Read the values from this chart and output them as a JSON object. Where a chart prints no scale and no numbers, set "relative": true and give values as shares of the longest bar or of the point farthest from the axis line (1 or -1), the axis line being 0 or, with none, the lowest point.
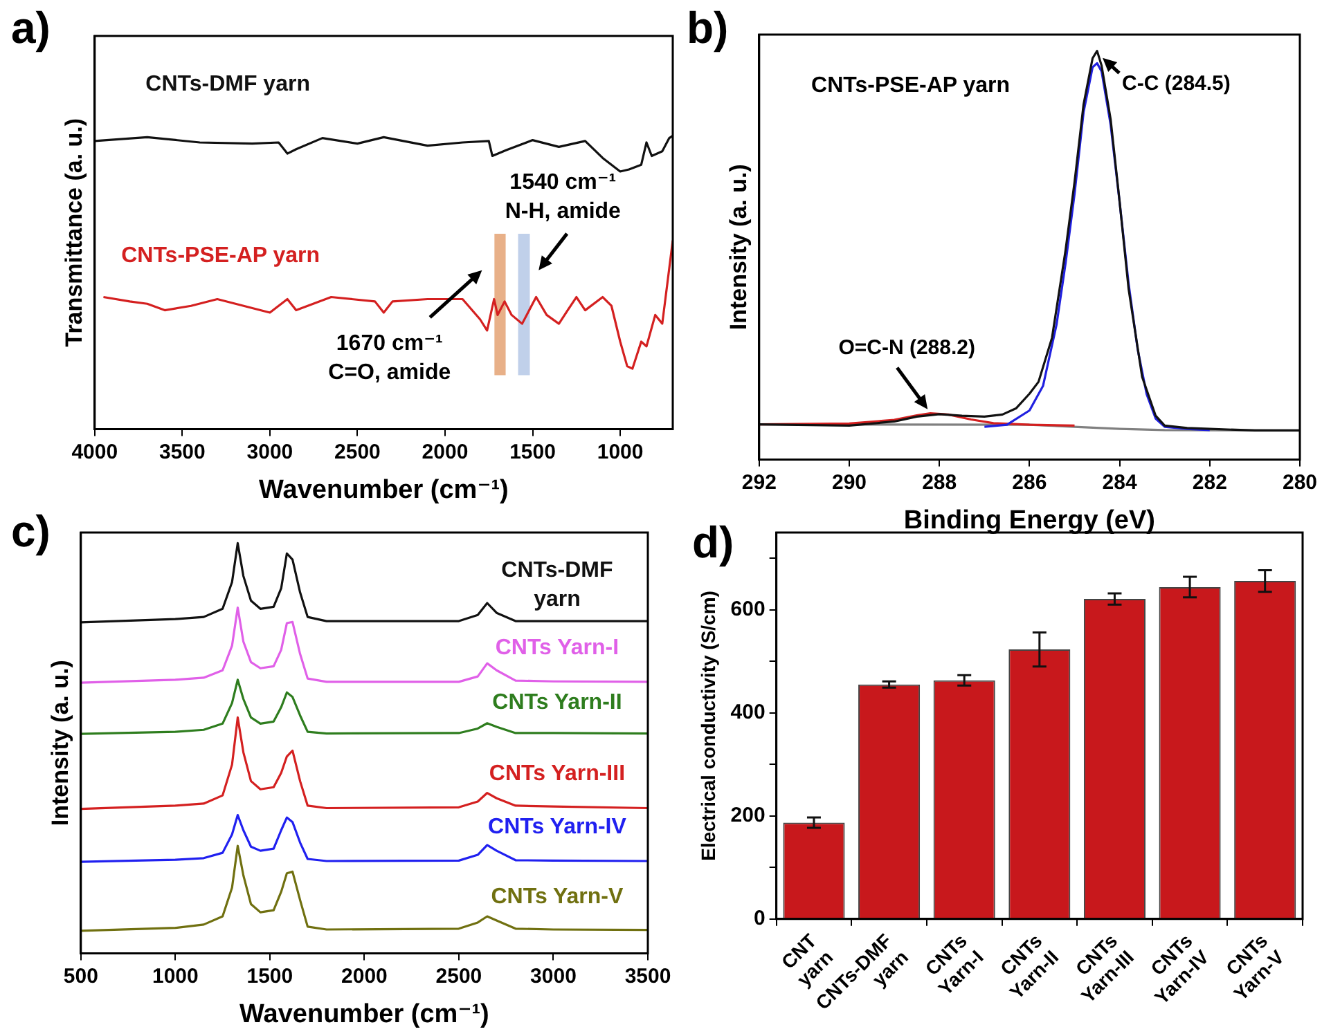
{
  "chart_data": [
    {
      "type": "line",
      "xlabel": "Wavenumber (cm⁻¹)",
      "ylabel": "Transmittance (a. u.)",
      "relative": true,
      "xlim": [
        4000,
        700
      ],
      "xticks": [
        4000,
        3500,
        3000,
        2500,
        2000,
        1500,
        1000
      ],
      "annotations": [
        "a)"
      ],
      "bands": [
        {
          "axis": "x",
          "from": 1718,
          "to": 1654,
          "label": "1670 cm⁻¹\nC=O, amide",
          "color": "#e8b088"
        },
        {
          "axis": "x",
          "from": 1583,
          "to": 1516,
          "label": "1540 cm⁻¹\nN-H, amide",
          "color": "#c0d0ea"
        }
      ],
      "series": [
        {
          "name": "CNTs-DMF yarn",
          "color": "#111111",
          "x": [
            4000,
            3700,
            3400,
            3100,
            2950,
            2900,
            2850,
            2700,
            2500,
            2350,
            2100,
            1900,
            1750,
            1730,
            1650,
            1500,
            1350,
            1200,
            1100,
            1000,
            950,
            880,
            850,
            820,
            760,
            720,
            700
          ],
          "values": [
            0.982,
            0.995,
            0.977,
            0.973,
            0.977,
            0.939,
            0.954,
            0.992,
            0.973,
            0.995,
            0.966,
            0.977,
            0.982,
            0.931,
            0.951,
            0.985,
            0.962,
            0.982,
            0.924,
            0.878,
            0.885,
            0.901,
            0.977,
            0.931,
            0.947,
            0.992,
            1.0
          ]
        },
        {
          "name": "CNTs-PSE-AP yarn",
          "color": "#d42020",
          "x": [
            3950,
            3800,
            3700,
            3600,
            3450,
            3300,
            3000,
            2900,
            2850,
            2650,
            2400,
            2350,
            2300,
            2100,
            1900,
            1800,
            1760,
            1720,
            1700,
            1660,
            1620,
            1560,
            1480,
            1420,
            1350,
            1300,
            1250,
            1200,
            1100,
            1050,
            1000,
            960,
            930,
            880,
            850,
            800,
            760,
            700
          ],
          "values": [
            0.45,
            0.435,
            0.427,
            0.405,
            0.42,
            0.443,
            0.397,
            0.443,
            0.405,
            0.45,
            0.435,
            0.397,
            0.435,
            0.443,
            0.443,
            0.374,
            0.336,
            0.443,
            0.389,
            0.435,
            0.389,
            0.359,
            0.45,
            0.389,
            0.359,
            0.405,
            0.45,
            0.405,
            0.45,
            0.42,
            0.298,
            0.214,
            0.206,
            0.298,
            0.282,
            0.389,
            0.359,
            0.643
          ]
        }
      ]
    },
    {
      "type": "line",
      "xlabel": "Binding Energy (eV)",
      "ylabel": "Intensity (a. u.)",
      "relative": true,
      "xlim": [
        292,
        280
      ],
      "xticks": [
        292,
        290,
        288,
        286,
        284,
        282,
        280
      ],
      "annotations": [
        "b)",
        "CNTs-PSE-AP yarn",
        {
          "text": "C-C (284.5)",
          "x": 284.5,
          "y": 1.0
        },
        {
          "text": "O=C-N (288.2)",
          "x": 288.2,
          "y": 0.113
        }
      ],
      "series": [
        {
          "color": "#111111",
          "x": [
            292,
            290,
            289,
            288.5,
            288,
            287.5,
            287,
            286.6,
            286.3,
            286,
            285.8,
            285.5,
            285.2,
            285,
            284.8,
            284.6,
            284.5,
            284.4,
            284.2,
            284,
            283.8,
            283.5,
            283.2,
            283,
            282.5,
            282,
            281,
            280
          ],
          "values": [
            0.086,
            0.083,
            0.093,
            0.105,
            0.111,
            0.107,
            0.105,
            0.11,
            0.125,
            0.161,
            0.19,
            0.298,
            0.512,
            0.679,
            0.869,
            0.982,
            1.0,
            0.964,
            0.833,
            0.631,
            0.417,
            0.202,
            0.107,
            0.083,
            0.077,
            0.075,
            0.071,
            0.071
          ]
        },
        {
          "color": "#2020e0",
          "x": [
            287,
            286.5,
            286,
            285.7,
            285.4,
            285.2,
            285,
            284.8,
            284.6,
            284.5,
            284.4,
            284.2,
            284,
            283.8,
            283.6,
            283.4,
            283.2,
            283,
            282.5,
            282
          ],
          "values": [
            0.08,
            0.085,
            0.12,
            0.18,
            0.33,
            0.48,
            0.65,
            0.85,
            0.96,
            0.97,
            0.95,
            0.82,
            0.63,
            0.43,
            0.27,
            0.16,
            0.1,
            0.08,
            0.075,
            0.072
          ]
        },
        {
          "color": "#d42020",
          "x": [
            292,
            290,
            289,
            288.5,
            288.2,
            287.8,
            287.3,
            286.8,
            286,
            285
          ],
          "values": [
            0.086,
            0.088,
            0.097,
            0.108,
            0.113,
            0.11,
            0.098,
            0.089,
            0.085,
            0.083
          ]
        },
        {
          "color": "#808080",
          "x": [
            292,
            286,
            284,
            283,
            280
          ],
          "values": [
            0.086,
            0.085,
            0.075,
            0.072,
            0.071
          ]
        }
      ]
    },
    {
      "type": "line",
      "xlabel": "Wavenumber (cm⁻¹)",
      "ylabel": "Intensity (a. u.)",
      "relative": true,
      "xlim": [
        500,
        3500
      ],
      "xticks": [
        500,
        1000,
        1500,
        2000,
        2500,
        3000,
        3500
      ],
      "annotations": [
        "c)"
      ],
      "x": [
        500,
        1000,
        1150,
        1250,
        1300,
        1330,
        1360,
        1400,
        1450,
        1520,
        1560,
        1590,
        1620,
        1660,
        1700,
        1800,
        2500,
        2600,
        2650,
        2700,
        2800,
        3000,
        3500
      ],
      "series": [
        {
          "name": "CNTs-DMF yarn",
          "color": "#111111",
          "values": [
            0.807,
            0.815,
            0.82,
            0.84,
            0.905,
            1.0,
            0.92,
            0.86,
            0.84,
            0.845,
            0.89,
            0.975,
            0.96,
            0.88,
            0.82,
            0.81,
            0.81,
            0.825,
            0.854,
            0.83,
            0.81,
            0.81,
            0.81
          ]
        },
        {
          "name": "CNTs Yarn-I",
          "color": "#e060e8",
          "values": [
            0.66,
            0.667,
            0.672,
            0.69,
            0.75,
            0.843,
            0.76,
            0.71,
            0.695,
            0.7,
            0.74,
            0.805,
            0.808,
            0.73,
            0.67,
            0.662,
            0.662,
            0.675,
            0.707,
            0.69,
            0.665,
            0.663,
            0.662
          ]
        },
        {
          "name": "CNTs Yarn-II",
          "color": "#2e7d1e",
          "values": [
            0.535,
            0.54,
            0.545,
            0.56,
            0.61,
            0.667,
            0.62,
            0.575,
            0.56,
            0.565,
            0.6,
            0.636,
            0.625,
            0.58,
            0.54,
            0.536,
            0.537,
            0.548,
            0.561,
            0.552,
            0.537,
            0.537,
            0.536
          ]
        },
        {
          "name": "CNTs Yarn-III",
          "color": "#d42020",
          "values": [
            0.352,
            0.36,
            0.365,
            0.385,
            0.46,
            0.575,
            0.49,
            0.42,
            0.4,
            0.405,
            0.44,
            0.48,
            0.494,
            0.42,
            0.36,
            0.354,
            0.356,
            0.37,
            0.391,
            0.378,
            0.36,
            0.358,
            0.354
          ]
        },
        {
          "name": "CNTs Yarn-IV",
          "color": "#2020f0",
          "values": [
            0.223,
            0.228,
            0.232,
            0.245,
            0.29,
            0.337,
            0.3,
            0.26,
            0.25,
            0.255,
            0.3,
            0.331,
            0.32,
            0.27,
            0.23,
            0.225,
            0.226,
            0.24,
            0.264,
            0.25,
            0.227,
            0.226,
            0.225
          ]
        },
        {
          "name": "CNTs Yarn-V",
          "color": "#707010",
          "values": [
            0.055,
            0.062,
            0.07,
            0.09,
            0.16,
            0.262,
            0.19,
            0.12,
            0.1,
            0.105,
            0.15,
            0.195,
            0.199,
            0.13,
            0.065,
            0.058,
            0.06,
            0.075,
            0.09,
            0.08,
            0.06,
            0.058,
            0.057
          ]
        }
      ]
    },
    {
      "type": "bar",
      "ylabel": "Electrical conductivity (S/cm)",
      "annotations": [
        "d)"
      ],
      "categories": [
        "CNT yarn",
        "CNTs-DMF yarn",
        "CNTs Yarn-I",
        "CNTs Yarn-II",
        "CNTs Yarn-III",
        "CNTs Yarn-IV",
        "CNTs Yarn-V"
      ],
      "values": [
        187,
        455,
        463,
        523,
        621,
        644,
        656
      ],
      "errors": [
        10,
        6,
        10,
        33,
        11,
        20,
        21
      ],
      "color": "#c8181c",
      "ylim": [
        0,
        750
      ],
      "yticks": [
        0,
        {
          "value": 100,
          "label": null
        },
        200,
        {
          "value": 300,
          "label": null
        },
        400,
        {
          "value": 500,
          "label": null
        },
        600,
        {
          "value": 700,
          "label": null
        }
      ]
    }
  ]
}
